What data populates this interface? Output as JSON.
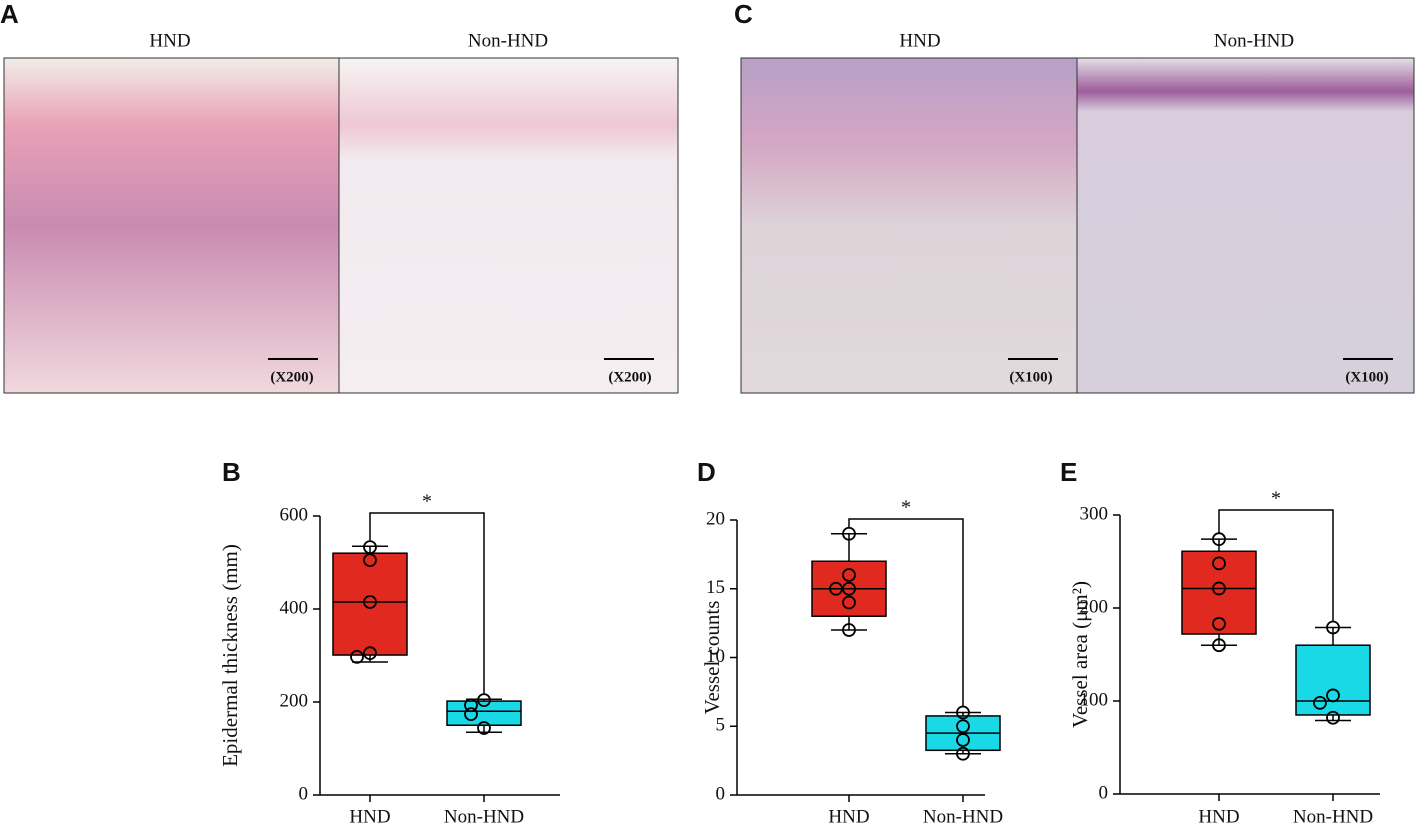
{
  "panels": [
    {
      "letter": "A",
      "columns": [
        "HND",
        "Non-HND"
      ],
      "magnification": [
        "(X200)",
        "(X200)"
      ]
    },
    {
      "letter": "C",
      "columns": [
        "HND",
        "Non-HND"
      ],
      "magnification": [
        "(X100)",
        "(X100)"
      ]
    }
  ],
  "chart_data": [
    {
      "type": "box",
      "letter": "B",
      "ylabel": "Epidermal thickness (mm)",
      "annotation": "*",
      "categories": [
        "HND",
        "Non-HND"
      ],
      "ylim": [
        0,
        600
      ],
      "yticks": [
        0,
        200,
        400,
        600
      ],
      "boxes": [
        {
          "color": "#e0291f",
          "whisker_low": 286,
          "q1": 301,
          "median": 415,
          "q3": 520,
          "whisker_high": 535,
          "points": [
            533,
            505,
            415,
            305,
            297
          ]
        },
        {
          "color": "#1ad9e6",
          "whisker_low": 135,
          "q1": 150,
          "median": 180,
          "q3": 202,
          "whisker_high": 206,
          "points": [
            204,
            193,
            174,
            144
          ]
        }
      ]
    },
    {
      "type": "box",
      "letter": "D",
      "ylabel": "Vessel counts",
      "annotation": "*",
      "categories": [
        "HND",
        "Non-HND"
      ],
      "ylim": [
        0,
        20
      ],
      "yticks": [
        0,
        5,
        10,
        15,
        20
      ],
      "boxes": [
        {
          "color": "#e0291f",
          "whisker_low": 12,
          "q1": 13,
          "median": 15,
          "q3": 17,
          "whisker_high": 19,
          "points": [
            19,
            16,
            15,
            15,
            14,
            12
          ]
        },
        {
          "color": "#1ad9e6",
          "whisker_low": 3,
          "q1": 3.25,
          "median": 4.5,
          "q3": 5.75,
          "whisker_high": 6,
          "points": [
            6,
            5,
            4,
            3
          ]
        }
      ]
    },
    {
      "type": "box",
      "letter": "E",
      "ylabel": "Vessel area (μm²)",
      "annotation": "*",
      "categories": [
        "HND",
        "Non-HND"
      ],
      "ylim": [
        0,
        300
      ],
      "yticks": [
        0,
        100,
        200,
        300
      ],
      "boxes": [
        {
          "color": "#e0291f",
          "whisker_low": 160,
          "q1": 172,
          "median": 221,
          "q3": 261,
          "whisker_high": 274,
          "points": [
            274,
            248,
            221,
            183,
            160
          ]
        },
        {
          "color": "#1ad9e6",
          "whisker_low": 79,
          "q1": 85,
          "median": 100,
          "q3": 160,
          "whisker_high": 179,
          "points": [
            179,
            106,
            98,
            82
          ]
        }
      ]
    }
  ]
}
